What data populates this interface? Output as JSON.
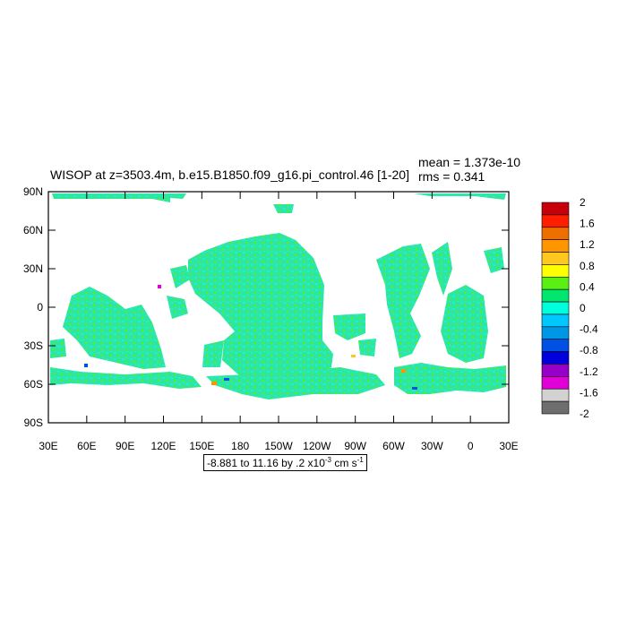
{
  "title": "WISOP at z=3503.4m, b.e15.B1850.f09_g16.pi_control.46 [1-20]",
  "stats": {
    "mean": "mean = 1.373e-10",
    "rms": "rms = 0.341"
  },
  "range_label": {
    "text": "-8.881 to 11.16 by .2 x10",
    "exponent": "-3",
    "units": " cm s",
    "units_exponent": "-1"
  },
  "x_ticks": [
    "30E",
    "60E",
    "90E",
    "120E",
    "150E",
    "180",
    "150W",
    "120W",
    "90W",
    "60W",
    "30W",
    "0",
    "30E"
  ],
  "y_ticks": [
    "90N",
    "60N",
    "30N",
    "0",
    "30S",
    "60S",
    "90S"
  ],
  "colorbar": {
    "labels": [
      "2",
      "1.6",
      "1.2",
      "0.8",
      "0.4",
      "0",
      "-0.4",
      "-0.8",
      "-1.2",
      "-1.6",
      "-2"
    ],
    "colors": [
      "#c8000a",
      "#ff1e00",
      "#ee6e00",
      "#ff9600",
      "#ffc81e",
      "#ffff00",
      "#5af014",
      "#00e66e",
      "#00ffdc",
      "#00c8ff",
      "#0096e6",
      "#0050e6",
      "#0000dc",
      "#9600c8",
      "#e100d7",
      "#d2d2d2",
      "#6e6e6e"
    ]
  },
  "map_colors": {
    "ocean_main": "#2ee6a0",
    "ocean_alt": "#1ef0d2",
    "speck_pos": "#ff9600",
    "speck_neg": "#0050e6"
  }
}
